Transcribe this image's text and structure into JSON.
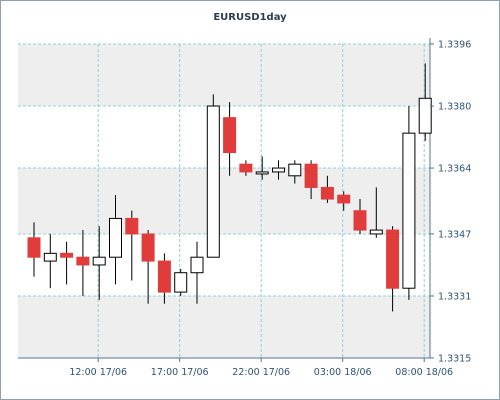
{
  "chart_data": {
    "type": "candlestick",
    "title": "EURUSD1day",
    "ylim": [
      1.3315,
      1.3396
    ],
    "y_ticks": [
      "1.3396",
      "1.3380",
      "1.3364",
      "1.3347",
      "1.3331",
      "1.3315"
    ],
    "x_ticks": [
      "12:00 17/06",
      "17:00 17/06",
      "22:00 17/06",
      "03:00 18/06",
      "08:00 18/06"
    ],
    "grid": true,
    "colors": {
      "bull": "#ffffff",
      "bear": "#e03c3c",
      "wick": "#000000",
      "grid": "#8fd0d8",
      "band": "#eeeeee",
      "axis": "#5a7390",
      "text": "#2f5373"
    },
    "candles": [
      {
        "o": 1.3346,
        "h": 1.335,
        "l": 1.3336,
        "c": 1.3341
      },
      {
        "o": 1.334,
        "h": 1.3347,
        "l": 1.3333,
        "c": 1.3342
      },
      {
        "o": 1.3342,
        "h": 1.3345,
        "l": 1.3334,
        "c": 1.3341
      },
      {
        "o": 1.3341,
        "h": 1.3348,
        "l": 1.3331,
        "c": 1.3339
      },
      {
        "o": 1.3339,
        "h": 1.3349,
        "l": 1.333,
        "c": 1.3341
      },
      {
        "o": 1.3341,
        "h": 1.3357,
        "l": 1.3334,
        "c": 1.3351
      },
      {
        "o": 1.3351,
        "h": 1.3353,
        "l": 1.3335,
        "c": 1.3347
      },
      {
        "o": 1.3347,
        "h": 1.3348,
        "l": 1.3329,
        "c": 1.334
      },
      {
        "o": 1.334,
        "h": 1.3342,
        "l": 1.3329,
        "c": 1.3332
      },
      {
        "o": 1.3332,
        "h": 1.3338,
        "l": 1.3331,
        "c": 1.3337
      },
      {
        "o": 1.3337,
        "h": 1.3345,
        "l": 1.3329,
        "c": 1.3341
      },
      {
        "o": 1.3341,
        "h": 1.3383,
        "l": 1.3341,
        "c": 1.338
      },
      {
        "o": 1.3377,
        "h": 1.3381,
        "l": 1.3362,
        "c": 1.3368
      },
      {
        "o": 1.3365,
        "h": 1.3366,
        "l": 1.3362,
        "c": 1.3363
      },
      {
        "o": 1.3363,
        "h": 1.3367,
        "l": 1.3361,
        "c": 1.3363
      },
      {
        "o": 1.3363,
        "h": 1.3366,
        "l": 1.3361,
        "c": 1.3364
      },
      {
        "o": 1.3362,
        "h": 1.3366,
        "l": 1.336,
        "c": 1.3365
      },
      {
        "o": 1.3365,
        "h": 1.3366,
        "l": 1.3356,
        "c": 1.3359
      },
      {
        "o": 1.3359,
        "h": 1.3362,
        "l": 1.3355,
        "c": 1.3356
      },
      {
        "o": 1.3357,
        "h": 1.3358,
        "l": 1.3353,
        "c": 1.3355
      },
      {
        "o": 1.3353,
        "h": 1.3356,
        "l": 1.3347,
        "c": 1.3348
      },
      {
        "o": 1.3347,
        "h": 1.3359,
        "l": 1.3346,
        "c": 1.3348
      },
      {
        "o": 1.3348,
        "h": 1.3349,
        "l": 1.3327,
        "c": 1.3333
      },
      {
        "o": 1.3333,
        "h": 1.338,
        "l": 1.333,
        "c": 1.3373
      },
      {
        "o": 1.3373,
        "h": 1.3391,
        "l": 1.3371,
        "c": 1.3382
      }
    ]
  }
}
